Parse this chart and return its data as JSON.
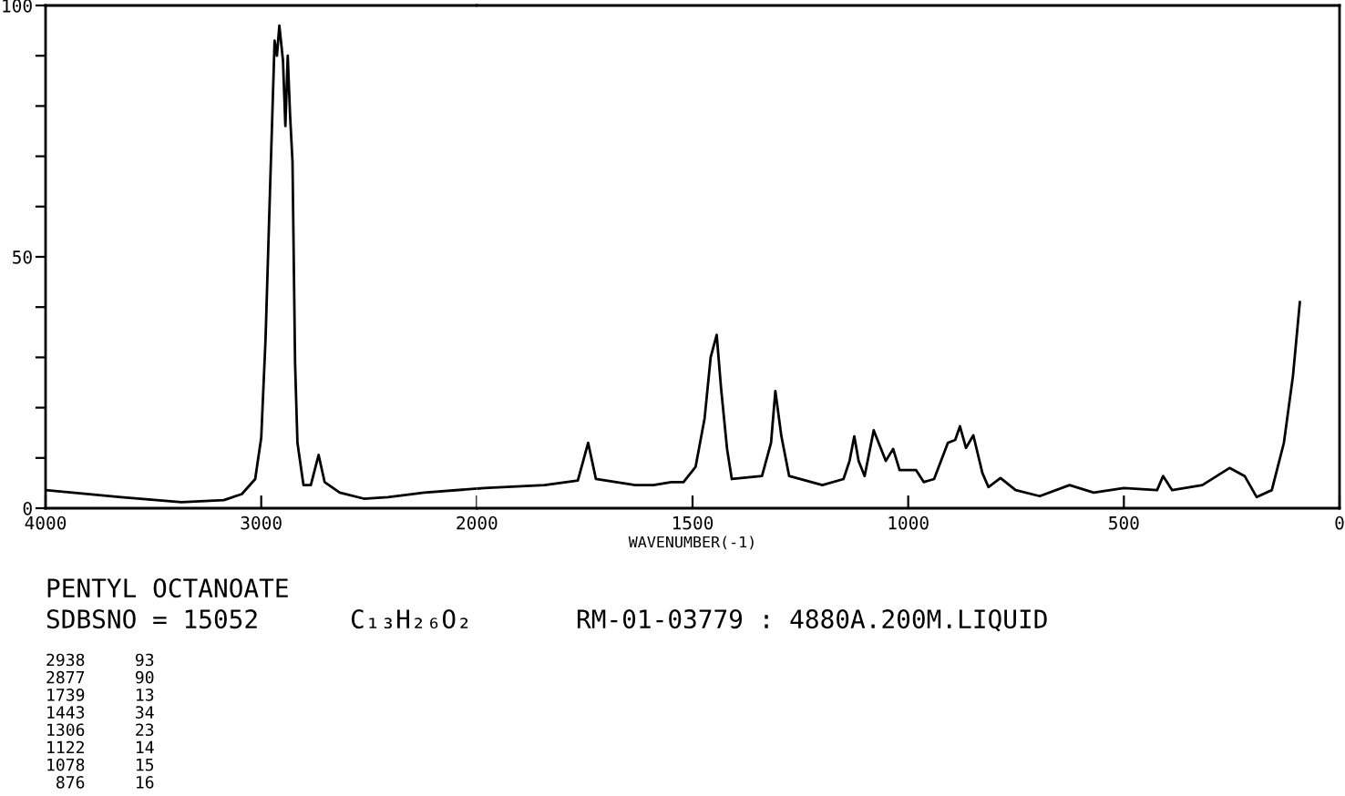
{
  "chart_data": [
    {
      "type": "line",
      "x": [
        4000,
        3650,
        3370,
        3174,
        3090,
        3028,
        3000,
        2980,
        2958,
        2938,
        2927,
        2916,
        2899,
        2888,
        2877,
        2866,
        2855,
        2843,
        2832,
        2804,
        2770,
        2734,
        2706,
        2636,
        2524,
        2412,
        2244,
        2000
      ],
      "series": [
        {
          "color": "#000000",
          "values": [
            3.6,
            2.2,
            1.2,
            1.6,
            2.8,
            5.8,
            14,
            33.6,
            65,
            93,
            90,
            96,
            89,
            76,
            90,
            78,
            69,
            28.7,
            13,
            4.6,
            4.6,
            10.6,
            5.2,
            3.1,
            1.9,
            2.2,
            3.1,
            3.9
          ]
        }
      ],
      "xlim": [
        4000,
        2000
      ],
      "xticks": [
        4000,
        3000,
        2000
      ],
      "ylim": [
        0,
        100
      ],
      "yticks": [
        0,
        {
          "value": 10,
          "label": null
        },
        {
          "value": 20,
          "label": null
        },
        {
          "value": 30,
          "label": null
        },
        {
          "value": 40,
          "label": null
        },
        50,
        {
          "value": 60,
          "label": null
        },
        {
          "value": 70,
          "label": null
        },
        {
          "value": 80,
          "label": null
        },
        {
          "value": 90,
          "label": null
        },
        100
      ],
      "grid": false,
      "legend": false,
      "marker": "none",
      "line_style": "solid",
      "annotations": [
        "PENTYL OCTANOATE",
        "SDBSNO = 15052",
        "C₁₃H₂₆O₂",
        "RM-01-03779 : 4880A.200M.LIQUID",
        "2938     93",
        "2877     90",
        "1739     13",
        "1443     34",
        "1306     23",
        "1122     14",
        "1078     15",
        " 876     16"
      ]
    },
    {
      "type": "line",
      "xlabel": "WAVENUMBER(-1)",
      "x": [
        2000,
        1983,
        1843,
        1766,
        1742,
        1724,
        1633,
        1591,
        1549,
        1521,
        1493,
        1472,
        1458,
        1444,
        1434,
        1420,
        1409,
        1339,
        1318,
        1308,
        1294,
        1276,
        1199,
        1150,
        1136,
        1125,
        1115,
        1101,
        1080,
        1052,
        1035,
        1020,
        982,
        964,
        940,
        908,
        891,
        880,
        866,
        849,
        828,
        814,
        786,
        751,
        695,
        626,
        570,
        500,
        423,
        409,
        388,
        318,
        255,
        220,
        192,
        157,
        129,
        108,
        92
      ],
      "series": [
        {
          "color": "#000000",
          "values": [
            3.9,
            4.0,
            4.6,
            5.5,
            13,
            5.8,
            4.6,
            4.6,
            5.2,
            5.2,
            8.2,
            17.9,
            30,
            34.5,
            24,
            11.8,
            5.8,
            6.4,
            13,
            23.3,
            14.3,
            6.4,
            4.6,
            5.8,
            9.4,
            14.3,
            9.4,
            6.4,
            15.5,
            9.4,
            11.8,
            7.6,
            7.6,
            5.2,
            5.8,
            13,
            13.6,
            16.3,
            12,
            14.5,
            7,
            4.2,
            6,
            3.6,
            2.4,
            4.6,
            3.1,
            4,
            3.6,
            6.4,
            3.6,
            4.6,
            8,
            6.4,
            2.2,
            3.6,
            13,
            26.3,
            41
          ]
        }
      ],
      "xlim": [
        2000,
        0
      ],
      "xticks": [
        1500,
        1000,
        500,
        0
      ],
      "ylim": [
        0,
        100
      ],
      "tick_labels": "x",
      "grid": false,
      "legend": false,
      "marker": "none",
      "line_style": "solid"
    }
  ]
}
